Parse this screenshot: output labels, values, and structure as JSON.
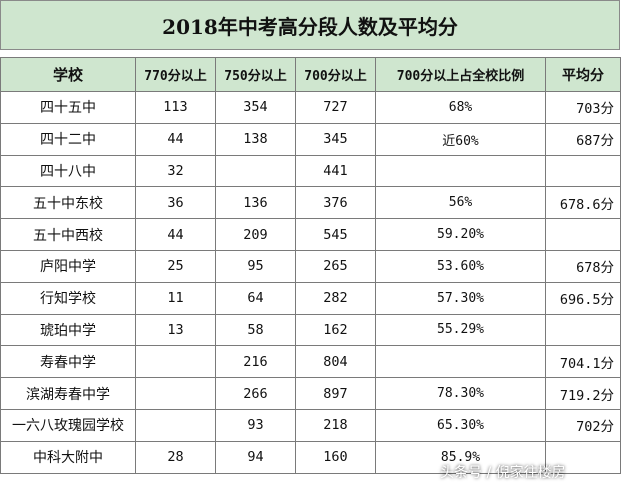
{
  "title": "2018年中考高分段人数及平均分",
  "columns": [
    "学校",
    "770分以上",
    "750分以上",
    "700分以上",
    "700分以上占全校比例",
    "平均分"
  ],
  "rows": [
    {
      "school": "四十五中",
      "c770": "113",
      "c750": "354",
      "c700": "727",
      "ratio": "68%",
      "avg": "703分"
    },
    {
      "school": "四十二中",
      "c770": "44",
      "c750": "138",
      "c700": "345",
      "ratio": "近60%",
      "avg": "687分"
    },
    {
      "school": "四十八中",
      "c770": "32",
      "c750": "",
      "c700": "441",
      "ratio": "",
      "avg": ""
    },
    {
      "school": "五十中东校",
      "c770": "36",
      "c750": "136",
      "c700": "376",
      "ratio": "56%",
      "avg": "678.6分"
    },
    {
      "school": "五十中西校",
      "c770": "44",
      "c750": "209",
      "c700": "545",
      "ratio": "59.20%",
      "avg": ""
    },
    {
      "school": "庐阳中学",
      "c770": "25",
      "c750": "95",
      "c700": "265",
      "ratio": "53.60%",
      "avg": "678分"
    },
    {
      "school": "行知学校",
      "c770": "11",
      "c750": "64",
      "c700": "282",
      "ratio": "57.30%",
      "avg": "696.5分"
    },
    {
      "school": "琥珀中学",
      "c770": "13",
      "c750": "58",
      "c700": "162",
      "ratio": "55.29%",
      "avg": ""
    },
    {
      "school": "寿春中学",
      "c770": "",
      "c750": "216",
      "c700": "804",
      "ratio": "",
      "avg": "704.1分"
    },
    {
      "school": "滨湖寿春中学",
      "c770": "",
      "c750": "266",
      "c700": "897",
      "ratio": "78.30%",
      "avg": "719.2分"
    },
    {
      "school": "一六八玫瑰园学校",
      "c770": "",
      "c750": "93",
      "c700": "218",
      "ratio": "65.30%",
      "avg": "702分"
    },
    {
      "school": "中科大附中",
      "c770": "28",
      "c750": "94",
      "c700": "160",
      "ratio": "85.9%",
      "avg": ""
    }
  ],
  "watermark": "头条号 / 倪家往楼房",
  "colors": {
    "header_bg": "#cfe6cf",
    "border": "#7a7a7a"
  }
}
